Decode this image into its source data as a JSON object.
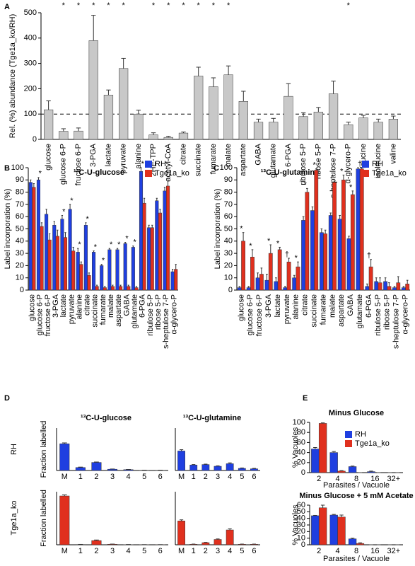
{
  "chart_data": [
    {
      "type": "bar",
      "panel": "A",
      "y_label": "Rel. (%) abundance (Tge1a_ko/RH)",
      "categories": [
        "glucose",
        "glucose 6-P",
        "fructose 6-P",
        "3-PGA",
        "lactate",
        "pyruvate",
        "alanine",
        "2HE-TPP",
        "acetyl-CoA",
        "citrate",
        "succinate",
        "fumarate",
        "malate",
        "aspartate",
        "GABA",
        "glutamate",
        "6-PGA",
        "ribulose 5-P",
        "ribose 5-P",
        "s-heptulose 7-P",
        "α-glycero-P",
        "leucine",
        "isoleucine",
        "valine"
      ],
      "category_colors": [
        "#2e9a2e",
        "#2e9a2e",
        "#2e9a2e",
        "#2e9a2e",
        "#2e9a2e",
        "#2e9a2e",
        "#2e9a2e",
        "#2e9a2e",
        "#2e9a2e",
        "#d9822b",
        "#d9822b",
        "#d9822b",
        "#d9822b",
        "#d9822b",
        "#d9822b",
        "#d9822b",
        "#7b2a8f",
        "#7b2a8f",
        "#7b2a8f",
        "#7b2a8f",
        "#000000",
        "#000000",
        "#000000",
        "#000000"
      ],
      "series": [
        {
          "color": "#c8c8c8",
          "values": [
            117,
            32,
            33,
            390,
            175,
            280,
            100,
            18,
            8,
            25,
            250,
            208,
            255,
            150,
            68,
            68,
            170,
            90,
            108,
            180,
            58,
            85,
            68,
            80
          ],
          "errors": [
            35,
            10,
            12,
            100,
            20,
            40,
            15,
            8,
            4,
            4,
            35,
            35,
            35,
            40,
            12,
            15,
            50,
            15,
            18,
            50,
            10,
            10,
            12,
            12
          ]
        }
      ],
      "markers": [
        null,
        "*",
        "*",
        "*",
        "*",
        "*",
        null,
        "*",
        "*",
        "*",
        "*",
        "*",
        "*",
        null,
        null,
        null,
        null,
        null,
        null,
        null,
        "*",
        null,
        null,
        null
      ],
      "ylim": [
        0,
        500
      ],
      "yticks": [
        0,
        100,
        200,
        300,
        400,
        500
      ],
      "reference_line": 100
    },
    {
      "type": "bar",
      "panel": "B",
      "title": "¹³C-U-glucose",
      "y_label": "Label incorporation (%)",
      "legend": true,
      "categories": [
        "glucose",
        "glucose 6-P",
        "fructose 6-P",
        "3-PGA",
        "lactate",
        "pyruvate",
        "alanine",
        "citrate",
        "succinate",
        "fumarate",
        "malate",
        "aspartate",
        "GABA",
        "glutamate",
        "6-PGA",
        "ribulose 5-P",
        "ribose 5-P",
        "s-heptulose 7-P",
        "α-glycero-P"
      ],
      "category_colors": [
        "#2e9a2e",
        "#2e9a2e",
        "#2e9a2e",
        "#2e9a2e",
        "#2e9a2e",
        "#2e9a2e",
        "#2e9a2e",
        "#d9822b",
        "#d9822b",
        "#d9822b",
        "#d9822b",
        "#d9822b",
        "#d9822b",
        "#d9822b",
        "#7b2a8f",
        "#7b2a8f",
        "#7b2a8f",
        "#7b2a8f",
        "#000000"
      ],
      "series": [
        {
          "name": "RH",
          "color": "#1f3fe0",
          "values": [
            88,
            90,
            62,
            53,
            58,
            66,
            31,
            53,
            31,
            20,
            33,
            33,
            38,
            35,
            97,
            51,
            73,
            81,
            15
          ],
          "errors": [
            2,
            2,
            4,
            3,
            3,
            4,
            3,
            2,
            1,
            1,
            1,
            1,
            1,
            1,
            3,
            2,
            2,
            3,
            2
          ]
        },
        {
          "name": "Tge1a_ko",
          "color": "#e0301e",
          "values": [
            84,
            52,
            41,
            44,
            43,
            32,
            21,
            12,
            3,
            2,
            3,
            3,
            3,
            2,
            71,
            51,
            63,
            85,
            17
          ],
          "errors": [
            3,
            3,
            5,
            5,
            4,
            3,
            2,
            2,
            1,
            1,
            1,
            1,
            1,
            1,
            4,
            2,
            3,
            4,
            4
          ]
        }
      ],
      "markers": [
        null,
        "*",
        null,
        null,
        "*",
        "*",
        "*",
        "*",
        "*",
        "*",
        "*",
        "*",
        "*",
        "*",
        "*",
        null,
        null,
        null,
        null
      ],
      "ylim": [
        0,
        100
      ],
      "yticks": [
        0,
        10,
        20,
        30,
        40,
        50,
        60,
        70,
        80,
        90,
        100
      ]
    },
    {
      "type": "bar",
      "panel": "C",
      "title": "¹³C-U-glutamine",
      "y_label": "Label incorporation (%)",
      "legend": true,
      "categories": [
        "glucose",
        "glucose 6-P",
        "fructose 6-P",
        "3-PGA",
        "lactate",
        "pyruvate",
        "alanine",
        "citrate",
        "succinate",
        "fumarate",
        "malate",
        "aspartate",
        "GABA",
        "glutamate",
        "6-PGA",
        "ribulose 5-P",
        "ribose 5-P",
        "s-heptulose 7-P",
        "α-glycero-P"
      ],
      "category_colors": [
        "#2e9a2e",
        "#2e9a2e",
        "#2e9a2e",
        "#2e9a2e",
        "#2e9a2e",
        "#2e9a2e",
        "#2e9a2e",
        "#d9822b",
        "#d9822b",
        "#d9822b",
        "#d9822b",
        "#d9822b",
        "#d9822b",
        "#d9822b",
        "#7b2a8f",
        "#7b2a8f",
        "#7b2a8f",
        "#7b2a8f",
        "#000000"
      ],
      "series": [
        {
          "name": "RH",
          "color": "#1f3fe0",
          "values": [
            2,
            2,
            10,
            8,
            7,
            2,
            10,
            57,
            65,
            47,
            61,
            58,
            42,
            99,
            3,
            7,
            7,
            2,
            2
          ],
          "errors": [
            1,
            1,
            4,
            5,
            3,
            1,
            2,
            3,
            3,
            3,
            2,
            3,
            2,
            1,
            2,
            3,
            3,
            1,
            1
          ]
        },
        {
          "name": "Tge1a_ko",
          "color": "#e0301e",
          "values": [
            40,
            27,
            13,
            30,
            33,
            23,
            19,
            80,
            98,
            46,
            88,
            90,
            78,
            99,
            19,
            6,
            3,
            6,
            5
          ],
          "errors": [
            7,
            6,
            5,
            7,
            2,
            3,
            4,
            3,
            1,
            3,
            1,
            4,
            3,
            1,
            6,
            4,
            3,
            5,
            3
          ]
        }
      ],
      "markers": [
        "*",
        "*",
        null,
        "*",
        "*",
        "†",
        "*",
        "*",
        "*",
        null,
        "*",
        "*",
        "*",
        "†",
        "†",
        null,
        null,
        null,
        null
      ],
      "ylim": [
        0,
        100
      ],
      "yticks": [
        0,
        10,
        20,
        30,
        40,
        50,
        60,
        70,
        80,
        90,
        100
      ]
    },
    {
      "type": "bar",
      "panel": "D",
      "title": "¹³C-U-glucose",
      "row_label": "RH",
      "row_label_color": "#1f3fe0",
      "y_label": "Fraction labelled",
      "categories": [
        "M",
        "1",
        "2",
        "3",
        "4",
        "5",
        "6"
      ],
      "series": [
        {
          "color": "#1f3fe0",
          "values": [
            0.63,
            0.07,
            0.19,
            0.03,
            0.02,
            0.005,
            0.005
          ],
          "errors": [
            0.02,
            0.01,
            0.01,
            0.005,
            0.005,
            0.002,
            0.002
          ]
        }
      ],
      "ylim": [
        0,
        1
      ]
    },
    {
      "type": "bar",
      "title": "¹³C-U-glutamine",
      "categories": [
        "M",
        "1",
        "2",
        "3",
        "4",
        "5",
        "6"
      ],
      "series": [
        {
          "color": "#1f3fe0",
          "values": [
            0.46,
            0.13,
            0.14,
            0.1,
            0.16,
            0.05,
            0.04
          ],
          "errors": [
            0.03,
            0.01,
            0.01,
            0.01,
            0.02,
            0.01,
            0.01
          ]
        }
      ],
      "ylim": [
        0,
        1
      ]
    },
    {
      "type": "bar",
      "row_label": "Tge1a_ko",
      "row_label_color": "#e0301e",
      "y_label": "Fraction labelled",
      "categories": [
        "M",
        "1",
        "2",
        "3",
        "4",
        "5",
        "6"
      ],
      "series": [
        {
          "color": "#e0301e",
          "values": [
            0.92,
            0.005,
            0.08,
            0.01,
            0.003,
            0.002,
            0.002
          ],
          "errors": [
            0.02,
            0.002,
            0.01,
            0.003,
            0.002,
            0.001,
            0.001
          ]
        }
      ],
      "ylim": [
        0,
        1
      ]
    },
    {
      "type": "bar",
      "categories": [
        "M",
        "1",
        "2",
        "3",
        "4",
        "5",
        "6"
      ],
      "series": [
        {
          "color": "#e0301e",
          "values": [
            0.45,
            0.01,
            0.04,
            0.1,
            0.28,
            0.01,
            0.01
          ],
          "errors": [
            0.02,
            0.003,
            0.005,
            0.01,
            0.02,
            0.003,
            0.003
          ]
        }
      ],
      "ylim": [
        0,
        1
      ]
    },
    {
      "type": "bar",
      "panel": "E",
      "title": "Minus Glucose",
      "y_label": "% Vacuoles",
      "x_label": "Parasites / Vacuole",
      "legend": true,
      "categories": [
        "2",
        "4",
        "8",
        "16",
        "32+"
      ],
      "series": [
        {
          "name": "RH",
          "color": "#1f3fe0",
          "values": [
            47,
            40,
            12,
            2,
            0
          ],
          "errors": [
            3,
            2,
            1,
            1,
            0
          ]
        },
        {
          "name": "Tge1a_ko",
          "color": "#e0301e",
          "values": [
            98,
            3,
            0,
            0,
            0
          ],
          "errors": [
            1,
            1,
            0,
            0,
            0
          ]
        }
      ],
      "ylim": [
        0,
        100
      ],
      "yticks": [
        0,
        20,
        40,
        60,
        80,
        100
      ]
    },
    {
      "type": "bar",
      "title": "Minus Glucose + 5 mM Acetate",
      "y_label": "% Vacuoles",
      "x_label": "Parasites / Vacuole",
      "categories": [
        "2",
        "4",
        "8",
        "16",
        "32+"
      ],
      "series": [
        {
          "color": "#1f3fe0",
          "values": [
            44,
            45,
            9,
            0,
            0
          ],
          "errors": [
            0.5,
            1,
            1,
            0,
            0
          ]
        },
        {
          "color": "#e0301e",
          "values": [
            56,
            42,
            2,
            0,
            0
          ],
          "errors": [
            4,
            3,
            1,
            0,
            0
          ]
        }
      ],
      "ylim": [
        0,
        60
      ],
      "yticks": [
        0,
        10,
        20,
        30,
        40,
        50,
        60
      ]
    }
  ]
}
